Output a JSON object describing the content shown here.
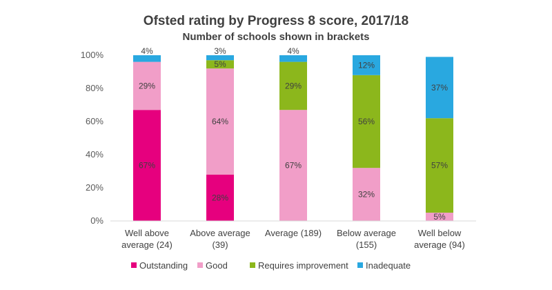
{
  "chart_data": {
    "type": "bar",
    "stacked": true,
    "title": "Ofsted rating by Progress 8 score, 2017/18",
    "subtitle": "Number of schools shown in brackets",
    "categories": [
      [
        "Well above",
        "average (24)"
      ],
      [
        "Above average",
        "(39)"
      ],
      [
        "Average (189)"
      ],
      [
        "Below average",
        "(155)"
      ],
      [
        "Well below",
        "average (94)"
      ]
    ],
    "y_ticks": [
      "0%",
      "20%",
      "40%",
      "60%",
      "80%",
      "100%"
    ],
    "ylim": [
      0,
      100
    ],
    "grid": false,
    "legend_position": "bottom",
    "series": [
      {
        "name": "Outstanding",
        "color": "#e6007e",
        "values": [
          67,
          28,
          0,
          0,
          0
        ],
        "labels": [
          "67%",
          "28%",
          "",
          "",
          ""
        ]
      },
      {
        "name": "Good",
        "color": "#f19ec8",
        "values": [
          29,
          64,
          67,
          32,
          5
        ],
        "labels": [
          "29%",
          "64%",
          "67%",
          "32%",
          "5%"
        ]
      },
      {
        "name": "Requires improvement",
        "color": "#8cb71c",
        "values": [
          0,
          5,
          29,
          56,
          57
        ],
        "labels": [
          "",
          "5%",
          "29%",
          "56%",
          "57%"
        ]
      },
      {
        "name": "Inadequate",
        "color": "#29a8e0",
        "values": [
          4,
          3,
          4,
          12,
          37
        ],
        "labels": [
          "4%",
          "3%",
          "4%",
          "12%",
          "37%"
        ]
      }
    ]
  }
}
